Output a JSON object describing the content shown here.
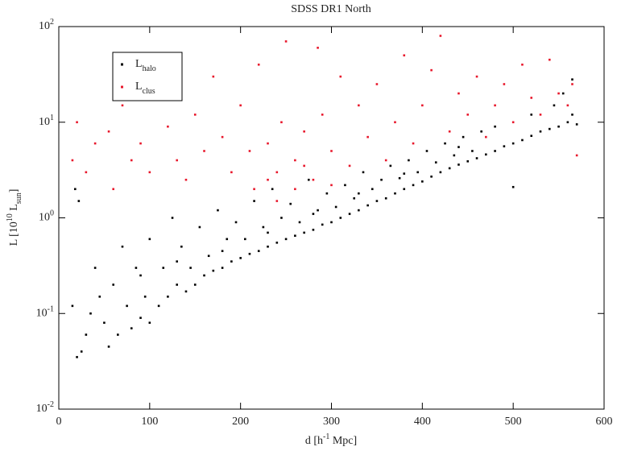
{
  "chart_data": {
    "type": "scatter",
    "title": "SDSS DR1 North",
    "x_label": "d [h^{-1} Mpc]",
    "y_label": "L [10^{10} L_{sun}]",
    "xlim": [
      0,
      600
    ],
    "xticks": [
      0,
      100,
      200,
      300,
      400,
      500,
      600
    ],
    "ylim": [
      0.01,
      100
    ],
    "log_y": true,
    "yticks": [
      {
        "value": 0.01,
        "label": "10^{-2}"
      },
      {
        "value": 0.1,
        "label": "10^{-1}"
      },
      {
        "value": 1,
        "label": "10^{0}"
      },
      {
        "value": 10,
        "label": "10^{1}"
      },
      {
        "value": 100,
        "label": "10^{2}"
      }
    ],
    "legend": "upper left",
    "series": [
      {
        "name": "L_{halo}",
        "color": "#000000",
        "x": [
          20,
          25,
          15,
          18,
          22,
          30,
          35,
          40,
          45,
          50,
          55,
          60,
          65,
          70,
          75,
          80,
          85,
          90,
          95,
          100,
          100,
          110,
          115,
          120,
          125,
          130,
          135,
          140,
          145,
          150,
          155,
          160,
          165,
          170,
          175,
          180,
          185,
          190,
          195,
          200,
          205,
          210,
          215,
          220,
          225,
          230,
          235,
          240,
          245,
          250,
          255,
          260,
          265,
          270,
          275,
          280,
          285,
          290,
          295,
          300,
          305,
          310,
          315,
          320,
          325,
          330,
          335,
          340,
          345,
          350,
          355,
          360,
          365,
          370,
          375,
          380,
          385,
          390,
          395,
          400,
          405,
          410,
          415,
          420,
          425,
          430,
          435,
          440,
          445,
          450,
          455,
          460,
          465,
          470,
          480,
          490,
          500,
          500,
          510,
          520,
          530,
          540,
          550,
          560,
          565,
          570,
          545,
          555,
          565,
          520,
          480,
          440,
          380,
          330,
          280,
          230,
          180,
          130,
          90
        ],
        "y": [
          0.035,
          0.04,
          0.12,
          2.0,
          1.5,
          0.06,
          0.1,
          0.3,
          0.15,
          0.08,
          0.045,
          0.2,
          0.06,
          0.5,
          0.12,
          0.07,
          0.3,
          0.09,
          0.15,
          0.08,
          0.6,
          0.12,
          0.3,
          0.15,
          1.0,
          0.2,
          0.5,
          0.17,
          0.3,
          0.2,
          0.8,
          0.25,
          0.4,
          0.28,
          1.2,
          0.3,
          0.6,
          0.35,
          0.9,
          0.38,
          0.6,
          0.42,
          1.5,
          0.45,
          0.8,
          0.5,
          2.0,
          0.55,
          1.0,
          0.6,
          1.4,
          0.65,
          0.9,
          0.7,
          2.5,
          0.75,
          1.2,
          0.85,
          1.8,
          0.9,
          1.3,
          1.0,
          2.2,
          1.1,
          1.6,
          1.2,
          3.0,
          1.35,
          2.0,
          1.5,
          2.5,
          1.6,
          3.5,
          1.8,
          2.6,
          2.0,
          4.0,
          2.2,
          3.0,
          2.4,
          5.0,
          2.7,
          3.8,
          3.0,
          6.0,
          3.3,
          4.5,
          3.6,
          7.0,
          3.9,
          5.0,
          4.2,
          8.0,
          4.6,
          5.0,
          5.6,
          6.0,
          2.1,
          6.5,
          7.2,
          8.0,
          8.5,
          9.0,
          10,
          12,
          9.5,
          15,
          20,
          28,
          12,
          9,
          5.5,
          2.9,
          1.8,
          1.1,
          0.7,
          0.45,
          0.35,
          0.25
        ]
      },
      {
        "name": "L_{clus}",
        "color": "#e8182c",
        "x": [
          15,
          20,
          30,
          40,
          55,
          60,
          70,
          80,
          90,
          100,
          110,
          120,
          130,
          140,
          150,
          160,
          170,
          180,
          190,
          200,
          210,
          215,
          220,
          230,
          240,
          245,
          250,
          260,
          270,
          280,
          285,
          290,
          300,
          310,
          320,
          330,
          340,
          350,
          360,
          370,
          380,
          390,
          400,
          410,
          420,
          430,
          440,
          450,
          460,
          470,
          480,
          490,
          500,
          510,
          520,
          530,
          540,
          550,
          560,
          565,
          570,
          240,
          260,
          300,
          230,
          270
        ],
        "y": [
          4,
          10,
          3,
          6,
          8,
          2,
          15,
          4,
          6,
          3,
          20,
          9,
          4,
          2.5,
          12,
          5,
          30,
          7,
          3,
          15,
          5,
          2,
          40,
          6,
          3,
          10,
          70,
          4,
          8,
          2.5,
          60,
          12,
          5,
          30,
          3.5,
          15,
          7,
          25,
          4,
          10,
          50,
          6,
          15,
          35,
          80,
          8,
          20,
          12,
          30,
          7,
          15,
          25,
          10,
          40,
          18,
          12,
          45,
          20,
          15,
          25,
          4.5,
          1.5,
          2.0,
          2.2,
          2.5,
          3.5
        ]
      }
    ]
  }
}
